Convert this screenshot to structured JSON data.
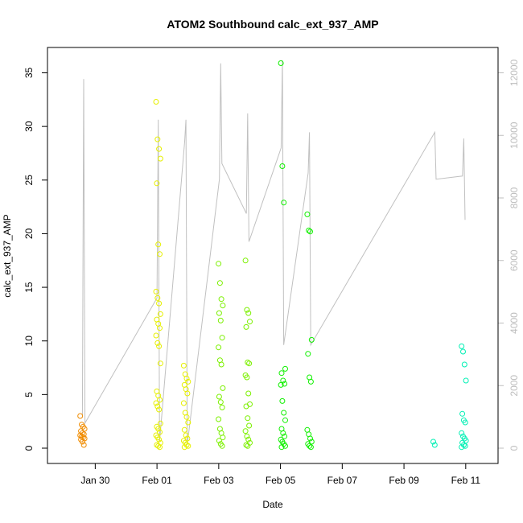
{
  "chart_data": {
    "type": "scatter",
    "title": "ATOM2 Southbound calc_ext_937_AMP",
    "xlabel": "Date",
    "ylabel": "calc_ext_937_AMP",
    "x_date_range": [
      "2024-01-29T00:00",
      "2024-02-11T12:00"
    ],
    "ylim": [
      0,
      37
    ],
    "y_ticks": [
      0,
      5,
      10,
      15,
      20,
      25,
      30,
      35
    ],
    "x_ticks": [
      {
        "label": "Jan 30",
        "date": "2024-01-30"
      },
      {
        "label": "Feb 01",
        "date": "2024-02-01"
      },
      {
        "label": "Feb 03",
        "date": "2024-02-03"
      },
      {
        "label": "Feb 05",
        "date": "2024-02-05"
      },
      {
        "label": "Feb 07",
        "date": "2024-02-07"
      },
      {
        "label": "Feb 09",
        "date": "2024-02-09"
      },
      {
        "label": "Feb 11",
        "date": "2024-02-11"
      }
    ],
    "y2lim": [
      0,
      12800
    ],
    "y2_ticks": [
      0,
      2000,
      4000,
      6000,
      8000,
      10000,
      12000
    ],
    "secondary_line_color": "#c0c0c0",
    "grid": false,
    "legend": "none",
    "series": [
      {
        "color": "#f08c00",
        "clusters": [
          {
            "x": "2024-01-29T14:00",
            "values": [
              3.0,
              2.2,
              2.0,
              1.8,
              1.6,
              1.4,
              1.3,
              1.2,
              1.1,
              1.0,
              0.9,
              0.8,
              0.6,
              0.3
            ]
          }
        ]
      },
      {
        "color": "#e6f000",
        "clusters": [
          {
            "x": "2024-02-01T01:00",
            "values": [
              32.3,
              28.8,
              27.9,
              27.0,
              24.7,
              19.0,
              18.1,
              14.6,
              14.0,
              13.5,
              12.5,
              12.0,
              11.6,
              11.2,
              10.5,
              9.8,
              9.5,
              7.9,
              5.3,
              4.9,
              4.5,
              4.2,
              3.9,
              3.6,
              2.3,
              2.0,
              1.8,
              1.5,
              1.2,
              1.0,
              0.8,
              0.5,
              0.3,
              0.2,
              0.1
            ]
          },
          {
            "x": "2024-02-01T22:30",
            "values": [
              7.7,
              6.9,
              6.5,
              6.2,
              5.9,
              5.5,
              5.1,
              4.2,
              3.3,
              2.9,
              2.4,
              1.7,
              1.2,
              0.9,
              0.7,
              0.5,
              0.3,
              0.2,
              0.1
            ]
          }
        ]
      },
      {
        "color": "#7cf000",
        "clusters": [
          {
            "x": "2024-02-03T01:30",
            "values": [
              17.2,
              15.4,
              13.9,
              13.3,
              12.6,
              11.9,
              10.3,
              9.4,
              8.2,
              7.8,
              5.6,
              4.8,
              4.3,
              3.8,
              2.7,
              1.8,
              1.4,
              1.0,
              0.7,
              0.4,
              0.2
            ]
          },
          {
            "x": "2024-02-03T22:30",
            "values": [
              17.5,
              12.9,
              12.6,
              11.8,
              11.3,
              8.0,
              7.9,
              6.8,
              6.6,
              5.1,
              4.1,
              3.9,
              2.8,
              2.1,
              1.6,
              1.1,
              0.8,
              0.5,
              0.3,
              0.2
            ]
          }
        ]
      },
      {
        "color": "#10f000",
        "clusters": [
          {
            "x": "2024-02-05T02:00",
            "values": [
              35.9,
              26.3,
              22.9,
              7.4,
              7.0,
              6.3,
              6.0,
              5.9,
              4.4,
              3.3,
              2.6,
              1.8,
              1.4,
              1.1,
              0.8,
              0.6,
              0.4,
              0.2,
              0.1
            ]
          },
          {
            "x": "2024-02-05T22:30",
            "values": [
              21.8,
              20.3,
              20.2,
              10.1,
              8.8,
              6.6,
              6.2,
              1.7,
              1.3,
              0.9,
              0.6,
              0.4,
              0.2,
              0.1
            ]
          }
        ]
      },
      {
        "color": "#00f0b4",
        "clusters": [
          {
            "x": "2024-02-10T00:30",
            "values": [
              0.6,
              0.3
            ]
          },
          {
            "x": "2024-02-10T22:30",
            "values": [
              9.5,
              9.0,
              7.8,
              6.3,
              3.2,
              2.6,
              2.4,
              1.4,
              1.1,
              0.9,
              0.7,
              0.5,
              0.3,
              0.2,
              0.1
            ]
          }
        ]
      }
    ],
    "secondary_line": [
      {
        "x": "2024-01-29T14:00",
        "y2": 1000
      },
      {
        "x": "2024-01-29T15:00",
        "y2": 11800
      },
      {
        "x": "2024-01-29T16:00",
        "y2": 800
      },
      {
        "x": "2024-02-01T00:00",
        "y2": 4800
      },
      {
        "x": "2024-02-01T01:00",
        "y2": 10500
      },
      {
        "x": "2024-02-01T02:00",
        "y2": 200
      },
      {
        "x": "2024-02-01T21:30",
        "y2": 9800
      },
      {
        "x": "2024-02-01T22:30",
        "y2": 10500
      },
      {
        "x": "2024-02-01T23:30",
        "y2": 100
      },
      {
        "x": "2024-02-03T00:30",
        "y2": 8600
      },
      {
        "x": "2024-02-03T01:30",
        "y2": 12300
      },
      {
        "x": "2024-02-03T02:30",
        "y2": 9100
      },
      {
        "x": "2024-02-03T21:30",
        "y2": 7500
      },
      {
        "x": "2024-02-03T22:30",
        "y2": 10700
      },
      {
        "x": "2024-02-03T23:30",
        "y2": 6600
      },
      {
        "x": "2024-02-05T00:30",
        "y2": 9600
      },
      {
        "x": "2024-02-05T01:30",
        "y2": 12400
      },
      {
        "x": "2024-02-05T02:30",
        "y2": 3300
      },
      {
        "x": "2024-02-05T21:30",
        "y2": 8800
      },
      {
        "x": "2024-02-05T22:30",
        "y2": 10100
      },
      {
        "x": "2024-02-05T23:30",
        "y2": 3300
      },
      {
        "x": "2024-02-10T00:00",
        "y2": 10100
      },
      {
        "x": "2024-02-10T01:00",
        "y2": 8600
      },
      {
        "x": "2024-02-10T21:30",
        "y2": 8700
      },
      {
        "x": "2024-02-10T22:30",
        "y2": 9900
      },
      {
        "x": "2024-02-10T23:30",
        "y2": 7300
      }
    ]
  }
}
